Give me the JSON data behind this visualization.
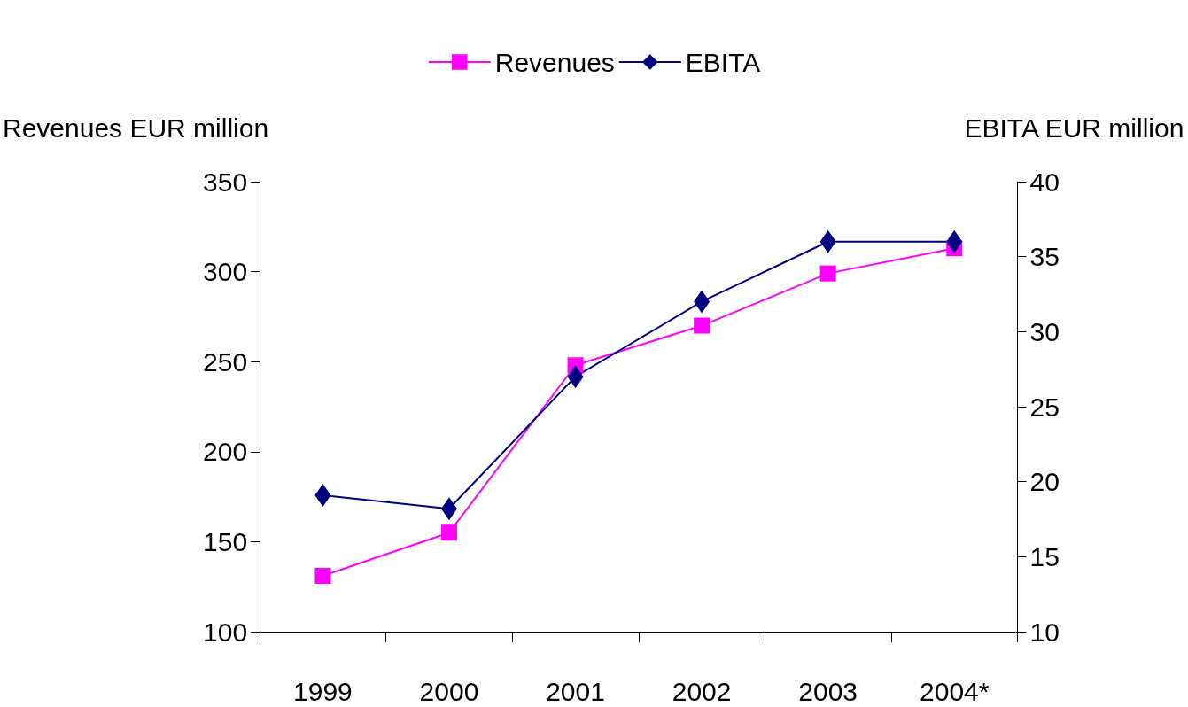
{
  "chart_data": {
    "type": "line",
    "ylabel": "Revenues EUR million",
    "y2label": "EBITA EUR million",
    "categories": [
      "1999",
      "2000",
      "2001",
      "2002",
      "2003",
      "2004*"
    ],
    "series": [
      {
        "name": "Revenues",
        "color": "#ff00ff",
        "marker": "square",
        "values": [
          131,
          155,
          248,
          270,
          299,
          313
        ]
      },
      {
        "name": "EBITA",
        "color": "#000080",
        "marker": "diamond",
        "axis": "y2",
        "values": [
          19.1,
          18.2,
          27.0,
          32.0,
          36.0,
          36.0
        ]
      }
    ],
    "ylim": [
      100,
      350
    ],
    "yticks": [
      100,
      150,
      200,
      250,
      300,
      350
    ],
    "y2lim": [
      10,
      40
    ],
    "y2ticks": [
      10,
      15,
      20,
      25,
      30,
      35,
      40
    ],
    "legend": "top",
    "grid": false,
    "line_style": "solid"
  }
}
